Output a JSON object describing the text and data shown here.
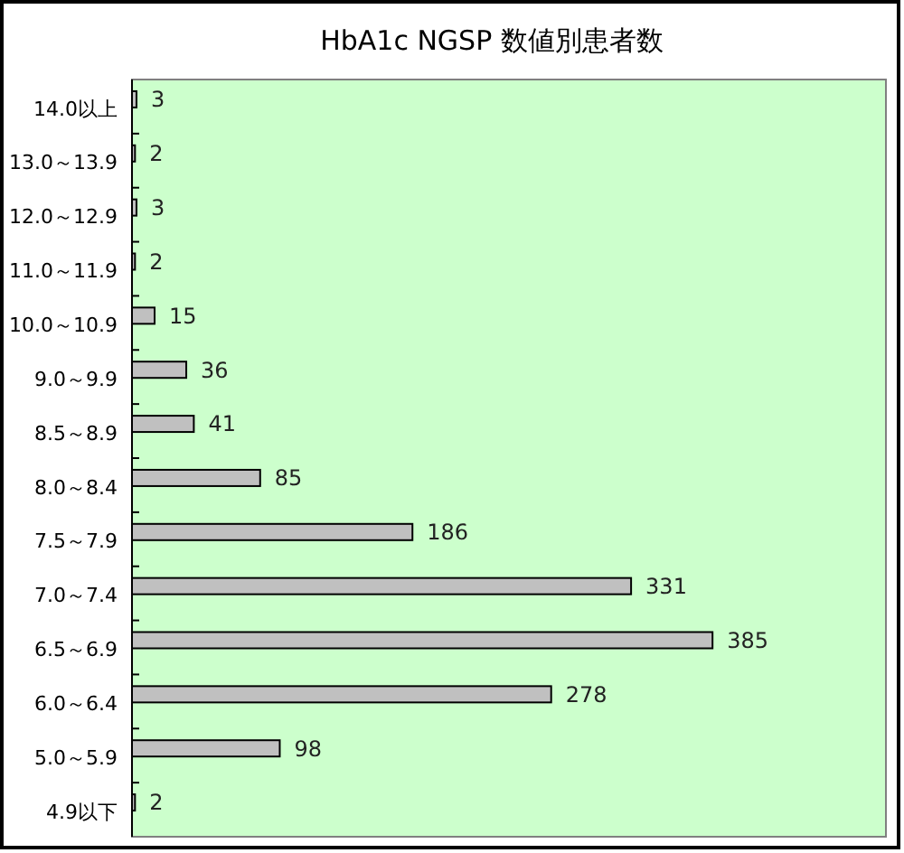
{
  "chart_data": {
    "type": "bar",
    "orientation": "horizontal",
    "title": "HbA1c NGSP 数値別患者数",
    "categories": [
      "14.0以上",
      "13.0～13.9",
      "12.0～12.9",
      "11.0～11.9",
      "10.0～10.9",
      "9.0～9.9",
      "8.5～8.9",
      "8.0～8.4",
      "7.5～7.9",
      "7.0～7.4",
      "6.5～6.9",
      "6.0～6.4",
      "5.0～5.9",
      "4.9以下"
    ],
    "values": [
      3,
      2,
      3,
      2,
      15,
      36,
      41,
      85,
      186,
      331,
      385,
      278,
      98,
      2
    ],
    "color": "#c0c0c0",
    "data_labels": true
  }
}
